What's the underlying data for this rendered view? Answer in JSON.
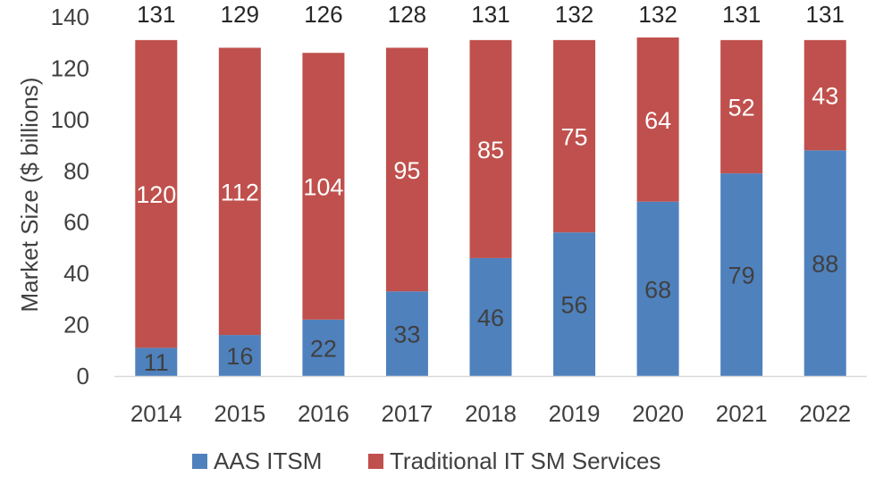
{
  "chart_data": {
    "type": "bar",
    "stacked": true,
    "title": "",
    "xlabel": "",
    "ylabel": "Market Size ($ billions)",
    "ylim": [
      0,
      140
    ],
    "yticks": [
      0,
      20,
      40,
      60,
      80,
      100,
      120,
      140
    ],
    "grid": false,
    "legend_position": "bottom",
    "categories": [
      "2014",
      "2015",
      "2016",
      "2017",
      "2018",
      "2019",
      "2020",
      "2021",
      "2022"
    ],
    "series": [
      {
        "name": "AAS ITSM",
        "color": "#4f81bd",
        "values": [
          11,
          16,
          22,
          33,
          46,
          56,
          68,
          79,
          88
        ]
      },
      {
        "name": "Traditional IT SM Services",
        "color": "#c0504d",
        "values": [
          120,
          112,
          104,
          95,
          85,
          75,
          64,
          52,
          43
        ]
      }
    ],
    "totals": [
      131,
      129,
      126,
      128,
      131,
      132,
      132,
      131,
      131
    ]
  }
}
